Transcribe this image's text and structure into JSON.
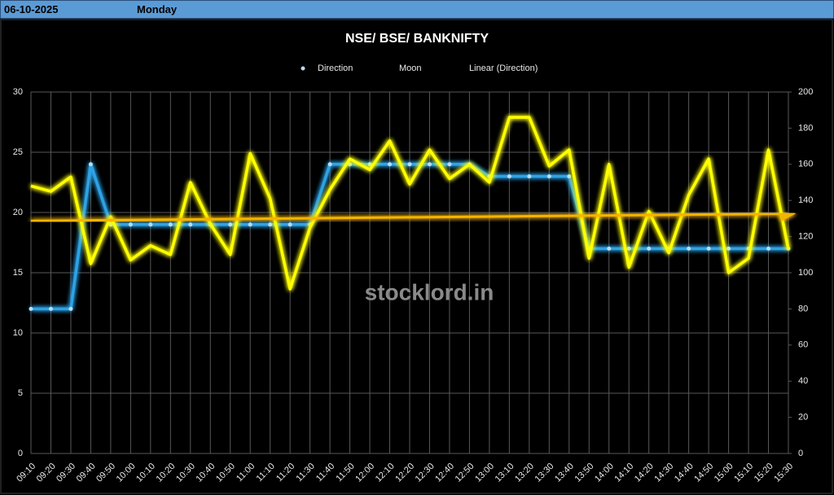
{
  "header": {
    "date": "06-10-2025",
    "day": "Monday"
  },
  "chart_data": {
    "type": "line",
    "title": "NSE/ BSE/ BANKNIFTY",
    "watermark": "stocklord.in",
    "categories": [
      "09:10",
      "09:20",
      "09:30",
      "09:40",
      "09:50",
      "10:00",
      "10:10",
      "10:20",
      "10:30",
      "10:40",
      "10:50",
      "11:00",
      "11:10",
      "11:20",
      "11:30",
      "11:40",
      "11:50",
      "12:00",
      "12:10",
      "12:20",
      "12:30",
      "12:40",
      "12:50",
      "13:00",
      "13:10",
      "13:20",
      "13:30",
      "13:40",
      "13:50",
      "14:00",
      "14:10",
      "14:20",
      "14:30",
      "14:40",
      "14:50",
      "15:00",
      "15:10",
      "15:20",
      "15:30"
    ],
    "series": [
      {
        "name": "Direction",
        "color": "#2fa3e6",
        "axis": "y",
        "markers": true,
        "values": [
          12,
          12,
          12,
          24,
          19,
          19,
          19,
          19,
          19,
          19,
          19,
          19,
          19,
          19,
          19,
          24,
          24,
          24,
          24,
          24,
          24,
          24,
          24,
          23,
          23,
          23,
          23,
          23,
          17,
          17,
          17,
          17,
          17,
          17,
          17,
          17,
          17,
          17,
          17
        ]
      },
      {
        "name": "Moon",
        "color": "#ffff00",
        "axis": "y2",
        "markers": false,
        "values": [
          148,
          145,
          153,
          105,
          131,
          107,
          115,
          110,
          150,
          127,
          110,
          166,
          141,
          91,
          125,
          146,
          163,
          157,
          173,
          149,
          168,
          152,
          160,
          150,
          186,
          186,
          159,
          168,
          108,
          160,
          103,
          134,
          111,
          143,
          163,
          100,
          108,
          168,
          113
        ]
      }
    ],
    "trendline": {
      "name": "Linear (Direction)",
      "color": "#f5b400",
      "values": [
        19.3,
        19.9
      ]
    },
    "ylim": [
      0,
      30
    ],
    "yticks": [
      0,
      5,
      10,
      15,
      20,
      25,
      30
    ],
    "y2lim": [
      0,
      200
    ],
    "y2ticks": [
      0,
      20,
      40,
      60,
      80,
      100,
      120,
      140,
      160,
      180,
      200
    ],
    "grid": true,
    "legend": "top"
  }
}
